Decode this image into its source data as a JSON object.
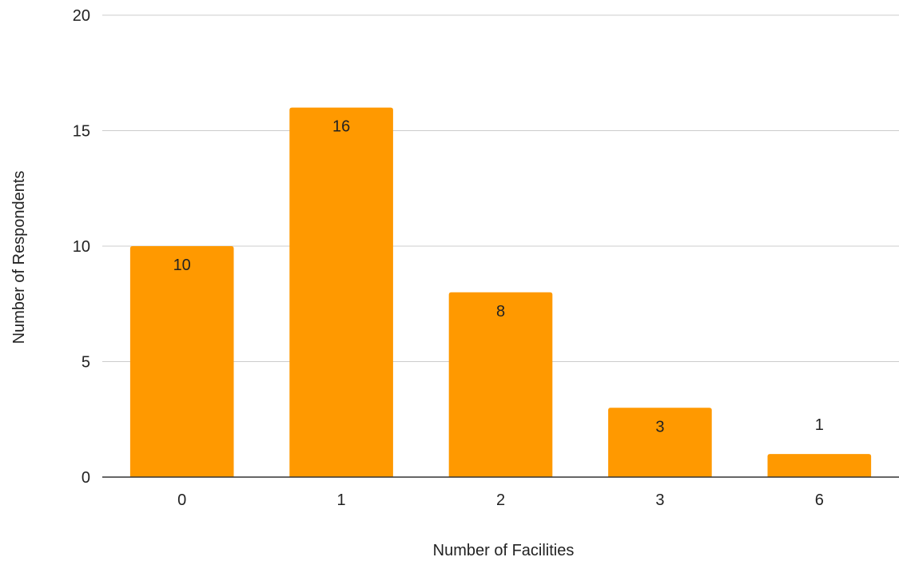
{
  "chart_data": {
    "type": "bar",
    "title": "",
    "xlabel": "Number of Facilities",
    "ylabel": "Number of Respondents",
    "categories": [
      "0",
      "1",
      "2",
      "3",
      "6"
    ],
    "values": [
      10,
      16,
      8,
      3,
      1
    ],
    "ylim": [
      0,
      20
    ],
    "yticks": [
      0,
      5,
      10,
      15,
      20
    ],
    "grid": true,
    "legend": "none",
    "bar_color": "#ff9900",
    "data_labels": true
  }
}
